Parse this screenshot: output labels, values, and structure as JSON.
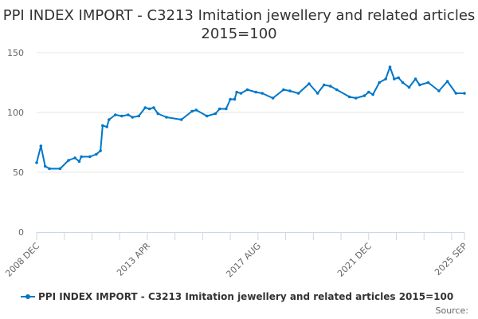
{
  "chart_data": {
    "type": "line",
    "title": "PPI INDEX IMPORT - C3213 Imitation jewellery and related articles 2015=100",
    "xlabel": "",
    "ylabel": "",
    "ylim": [
      0,
      150
    ],
    "yticks": [
      0,
      50,
      100,
      150
    ],
    "x_start": "2008-12",
    "x_end": "2025-09",
    "xtick_labels": [
      "2008 DEC",
      "2013 APR",
      "2017 AUG",
      "2021 DEC",
      "2025 SEP"
    ],
    "xtick_dates": [
      "2008-12",
      "2013-04",
      "2017-08",
      "2021-12",
      "2025-09"
    ],
    "grid": true,
    "legend": "bottom",
    "series": [
      {
        "name": "PPI INDEX IMPORT - C3213 Imitation jewellery and related articles 2015=100",
        "color": "#0077c8",
        "x": [
          "2008-12",
          "2009-02",
          "2009-04",
          "2009-06",
          "2009-11",
          "2010-03",
          "2010-06",
          "2010-08",
          "2010-09",
          "2011-01",
          "2011-04",
          "2011-06",
          "2011-07",
          "2011-09",
          "2011-10",
          "2012-01",
          "2012-04",
          "2012-07",
          "2012-09",
          "2012-12",
          "2013-03",
          "2013-05",
          "2013-07",
          "2013-09",
          "2014-01",
          "2014-08",
          "2015-01",
          "2015-03",
          "2015-08",
          "2015-12",
          "2016-02",
          "2016-05",
          "2016-07",
          "2016-09",
          "2016-10",
          "2016-12",
          "2017-03",
          "2017-07",
          "2017-10",
          "2018-03",
          "2018-08",
          "2018-11",
          "2019-03",
          "2019-08",
          "2019-12",
          "2020-03",
          "2020-06",
          "2020-09",
          "2021-03",
          "2021-06",
          "2021-10",
          "2021-12",
          "2022-02",
          "2022-05",
          "2022-08",
          "2022-10",
          "2022-12",
          "2023-02",
          "2023-04",
          "2023-07",
          "2023-10",
          "2023-12",
          "2024-04",
          "2024-09",
          "2025-01",
          "2025-05",
          "2025-09"
        ],
        "values": [
          58,
          72,
          55,
          53,
          53,
          60,
          62,
          59,
          63,
          63,
          65,
          68,
          89,
          88,
          94,
          98,
          97,
          98,
          96,
          97,
          104,
          103,
          104,
          99,
          96,
          94,
          101,
          102,
          97,
          99,
          103,
          103,
          111,
          111,
          117,
          116,
          119,
          117,
          116,
          112,
          119,
          118,
          116,
          124,
          116,
          123,
          122,
          119,
          113,
          112,
          114,
          117,
          115,
          125,
          128,
          138,
          128,
          129,
          125,
          121,
          128,
          123,
          125,
          118,
          126,
          116,
          116
        ]
      }
    ],
    "source_label": "Source:"
  }
}
